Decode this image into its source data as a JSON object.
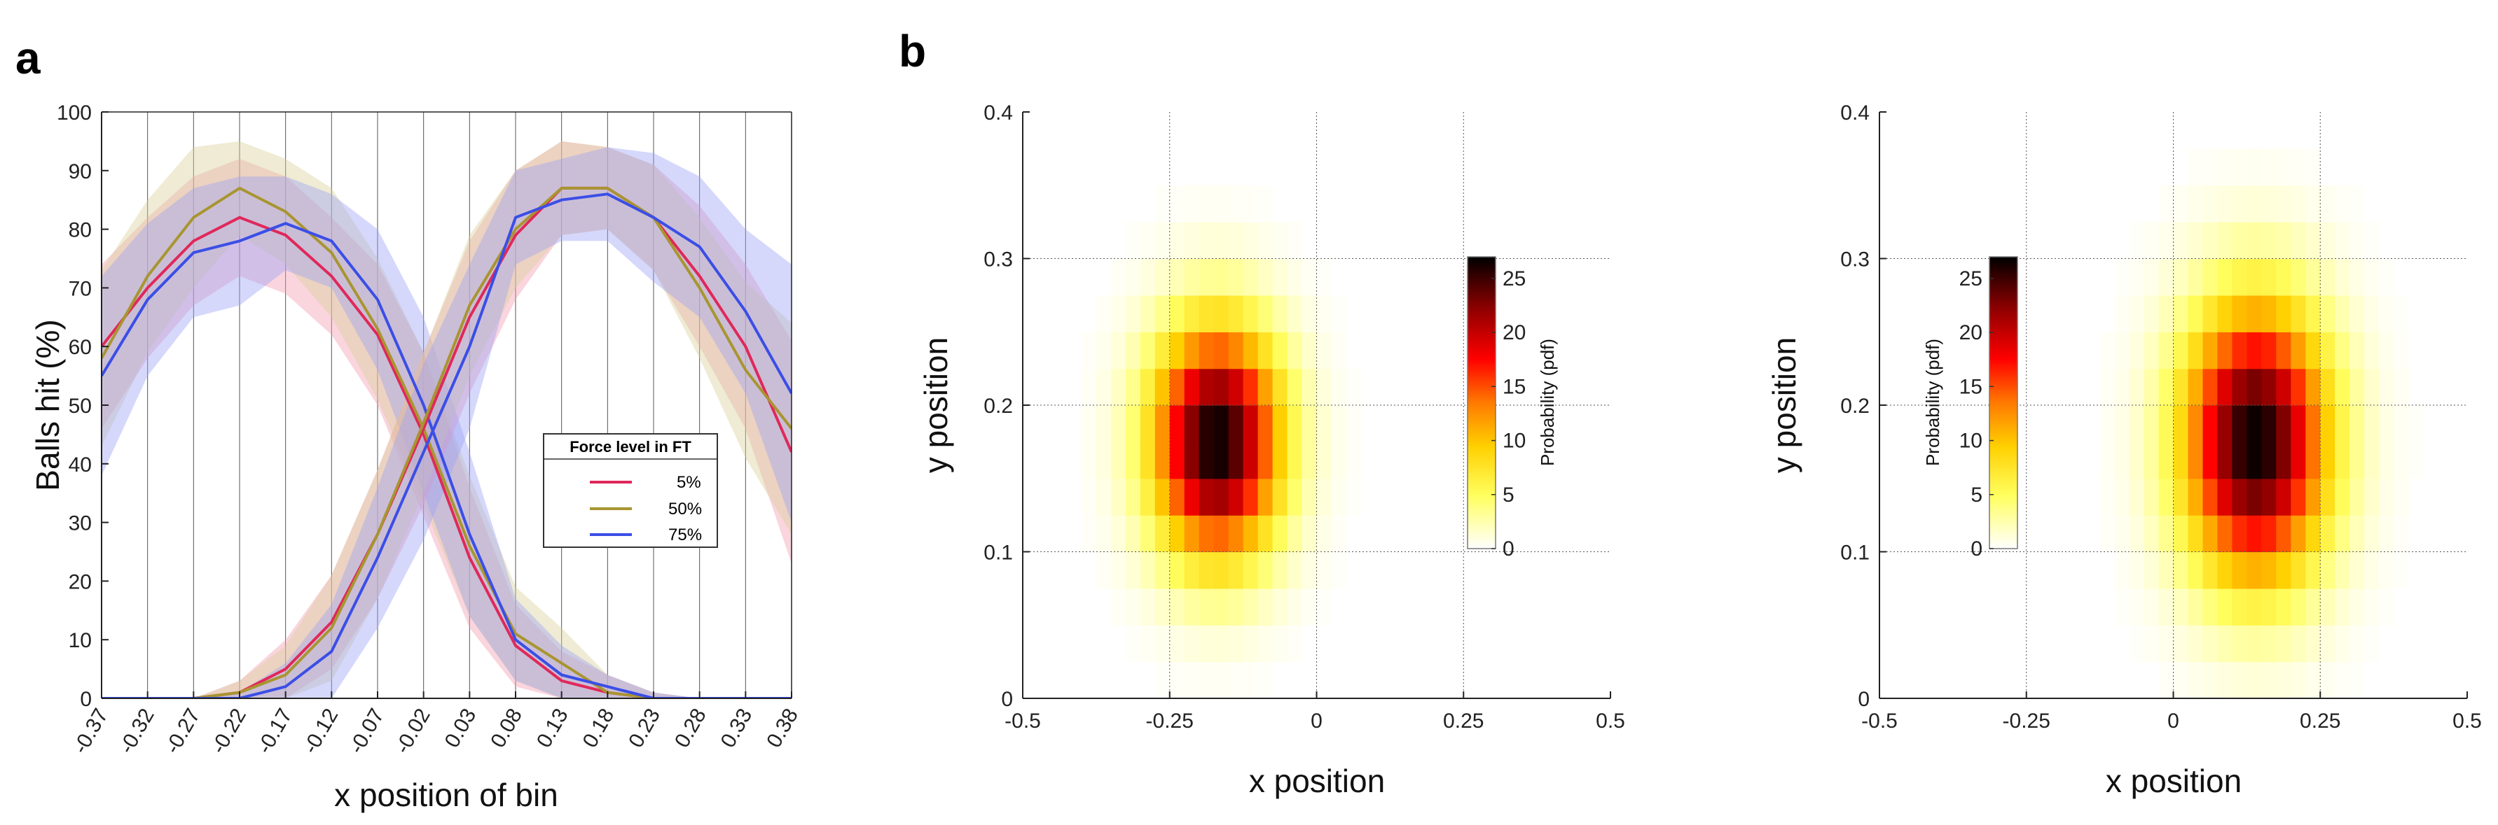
{
  "panel_labels": {
    "a": "a",
    "b": "b"
  },
  "colors": {
    "5%": "#e0285a",
    "50%": "#a89530",
    "75%": "#3b4ee6",
    "band_5": "#f29ab0",
    "band_50": "#d8d098",
    "band_75": "#9aa3f5",
    "heat_low": "#ffffff",
    "heat_mid": "#ffff00",
    "heat_red": "#ff0000",
    "heat_high": "#000000"
  },
  "chart_data": [
    {
      "type": "line",
      "xlabel": "x position of bin",
      "ylabel": "Balls hit (%)",
      "ylim": [
        0,
        100
      ],
      "yticks": [
        0,
        10,
        20,
        30,
        40,
        50,
        60,
        70,
        80,
        90,
        100
      ],
      "categories": [
        "-0.37",
        "-0.32",
        "-0.27",
        "-0.22",
        "-0.17",
        "-0.12",
        "-0.07",
        "-0.02",
        "0.03",
        "0.08",
        "0.13",
        "0.18",
        "0.23",
        "0.28",
        "0.33",
        "0.38"
      ],
      "vertical_gridlines": true,
      "legend": {
        "title": "Force level in FT",
        "entries": [
          "5%",
          "50%",
          "75%"
        ],
        "position": "right-middle"
      },
      "series": [
        {
          "name": "5%",
          "curve": "left",
          "values": [
            60,
            70,
            78,
            82,
            79,
            72,
            62,
            45,
            24,
            9,
            3,
            1,
            0,
            0,
            0,
            0
          ],
          "band": [
            14,
            12,
            11,
            10,
            10,
            10,
            12,
            14,
            12,
            7,
            5,
            3,
            1,
            0,
            0,
            0
          ]
        },
        {
          "name": "50%",
          "curve": "left",
          "values": [
            58,
            72,
            82,
            87,
            83,
            76,
            63,
            46,
            26,
            11,
            6,
            1,
            0,
            0,
            0,
            0
          ],
          "band": [
            15,
            13,
            12,
            8,
            9,
            11,
            12,
            13,
            12,
            8,
            6,
            3,
            1,
            0,
            0,
            0
          ]
        },
        {
          "name": "75%",
          "curve": "left",
          "values": [
            55,
            68,
            76,
            78,
            81,
            78,
            68,
            50,
            28,
            10,
            4,
            2,
            0,
            0,
            0,
            0
          ],
          "band": [
            17,
            13,
            11,
            11,
            8,
            8,
            12,
            15,
            14,
            7,
            5,
            2,
            1,
            0,
            0,
            0
          ]
        },
        {
          "name": "5%",
          "curve": "right",
          "values": [
            0,
            0,
            0,
            1,
            5,
            13,
            28,
            46,
            65,
            79,
            87,
            87,
            82,
            72,
            60,
            42
          ],
          "band": [
            0,
            0,
            0,
            2,
            5,
            8,
            11,
            13,
            13,
            11,
            8,
            7,
            9,
            12,
            14,
            19
          ]
        },
        {
          "name": "50%",
          "curve": "right",
          "values": [
            0,
            0,
            0,
            1,
            4,
            12,
            28,
            47,
            67,
            80,
            87,
            87,
            82,
            70,
            56,
            46
          ],
          "band": [
            0,
            0,
            0,
            2,
            5,
            9,
            11,
            12,
            12,
            10,
            8,
            7,
            9,
            12,
            15,
            18
          ]
        },
        {
          "name": "75%",
          "curve": "right",
          "values": [
            0,
            0,
            0,
            0,
            2,
            8,
            24,
            42,
            60,
            82,
            85,
            86,
            82,
            77,
            66,
            52
          ],
          "band": [
            0,
            0,
            0,
            1,
            4,
            8,
            12,
            15,
            14,
            8,
            7,
            8,
            11,
            12,
            14,
            22
          ]
        }
      ]
    },
    {
      "type": "heatmap",
      "xlabel": "x position",
      "ylabel": "y position",
      "xlim": [
        -0.5,
        0.5
      ],
      "ylim": [
        0,
        0.4
      ],
      "xticks": [
        -0.5,
        -0.25,
        0,
        0.25,
        0.5
      ],
      "xtick_labels": [
        "-0.5",
        "-0.25",
        "0",
        "0.25",
        "0.5"
      ],
      "yticks": [
        0,
        0.1,
        0.2,
        0.3,
        0.4
      ],
      "ytick_labels": [
        "0",
        "0.1",
        "0.2",
        "0.3",
        "0.4"
      ],
      "bin_size": 0.025,
      "peak": {
        "x": -0.17,
        "y": 0.175,
        "value": 27,
        "sx": 0.075,
        "sy": 0.055
      },
      "colorbar": {
        "label": "Probability (pdf)",
        "range": [
          0,
          27
        ],
        "ticks": [
          0,
          5,
          10,
          15,
          20,
          25
        ],
        "placement": "right"
      },
      "grid": true
    },
    {
      "type": "heatmap",
      "xlabel": "x position",
      "ylabel": "y position",
      "xlim": [
        -0.5,
        0.5
      ],
      "ylim": [
        0,
        0.4
      ],
      "xticks": [
        -0.5,
        -0.25,
        0,
        0.25,
        0.5
      ],
      "xtick_labels": [
        "-0.5",
        "-0.25",
        "0",
        "0.25",
        "0.5"
      ],
      "yticks": [
        0,
        0.1,
        0.2,
        0.3,
        0.4
      ],
      "ytick_labels": [
        "0",
        "0.1",
        "0.2",
        "0.3",
        "0.4"
      ],
      "bin_size": 0.025,
      "peak": {
        "x": 0.14,
        "y": 0.175,
        "value": 27,
        "sx": 0.085,
        "sy": 0.065
      },
      "colorbar": {
        "label": "Probability (pdf)",
        "range": [
          0,
          27
        ],
        "ticks": [
          0,
          5,
          10,
          15,
          20,
          25
        ],
        "placement": "left"
      },
      "grid": true
    }
  ]
}
